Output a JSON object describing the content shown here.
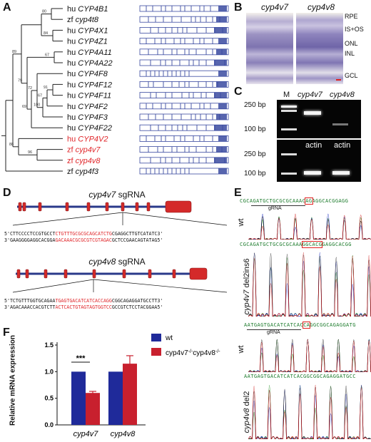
{
  "panels": {
    "A": "A",
    "B": "B",
    "C": "C",
    "D": "D",
    "E": "E",
    "F": "F"
  },
  "tree": {
    "species": [
      {
        "sp": "hu",
        "gene": "CYP4B1",
        "red": false
      },
      {
        "sp": "zf",
        "gene": "cyp4t8",
        "red": false
      },
      {
        "sp": "hu",
        "gene": "CYP4X1",
        "red": false
      },
      {
        "sp": "hu",
        "gene": "CYP4Z1",
        "red": false
      },
      {
        "sp": "hu",
        "gene": "CYP4A11",
        "red": false
      },
      {
        "sp": "hu",
        "gene": "CYP4A22",
        "red": false
      },
      {
        "sp": "hu",
        "gene": "CYP4F8",
        "red": false
      },
      {
        "sp": "hu",
        "gene": "CYP4F12",
        "red": false
      },
      {
        "sp": "hu",
        "gene": "CYP4F11",
        "red": false
      },
      {
        "sp": "hu",
        "gene": "CYP4F2",
        "red": false
      },
      {
        "sp": "hu",
        "gene": "CYP4F3",
        "red": false
      },
      {
        "sp": "hu",
        "gene": "CYP4F22",
        "red": false
      },
      {
        "sp": "hu",
        "gene": "CYP4V2",
        "red": true
      },
      {
        "sp": "zf",
        "gene": "cyp4v7",
        "red": true
      },
      {
        "sp": "zf",
        "gene": "cyp4v8",
        "red": true
      },
      {
        "sp": "zf",
        "gene": "cyp4f3",
        "red": false
      }
    ],
    "bootstrap": [
      "80",
      "84",
      "67",
      "91",
      "67",
      "100",
      "72",
      "69",
      "79",
      "89",
      "96",
      "88"
    ]
  },
  "histology": {
    "title_left": "cyp4v7",
    "title_right": "cyp4v8",
    "layers": [
      "RPE",
      "IS+OS",
      "ONL",
      "INL",
      "GCL"
    ]
  },
  "gel": {
    "marker": "M",
    "lane1": "cyp4v7",
    "lane2": "cyp4v8",
    "actin1": "actin",
    "actin2": "actin",
    "bp250": "250 bp",
    "bp100": "100 bp"
  },
  "sgrna": {
    "title_v7_gene": "cyp4v7",
    "title_v7_suffix": " sgRNA",
    "v7_top_black": "5'CTTCCCCTCCGTGCCT",
    "v7_top_red": "CTGTTTGCGCGCAGCATCTG",
    "v7_top_tail": "CGAGGCTTGTCATATC3'",
    "v7_bot_black": "3'GAAGGGGAGGCACGGA",
    "v7_bot_red": "GACAAACGCGCGTCGTAGAC",
    "v7_bot_tail": "GCTCCGAACAGTATAG5'",
    "title_v8_gene": "cyp4v8",
    "title_v8_suffix": " sgRNA",
    "v8_top_black": "5'TCTGTTTGGTGCAGAA",
    "v8_top_red": "TGAGTGACATCATCACCAGG",
    "v8_top_tail": "CGGCAGAGGATGCCTT3'",
    "v8_bot_black": "3'AGACAAACCACGTCTT",
    "v8_bot_red": "ACTCACTGTAGTAGTGGTCC",
    "v8_bot_tail": "GCCGTCTCCTACGGAA5'"
  },
  "seq": {
    "ref1_a": "CGCAGATGCTGCGCGCAAAC",
    "ref1_b": "AG",
    "ref1_c": "AGGCACGGAGG",
    "grna1": "gRNA",
    "wt1": "wt",
    "mut1_a": "CGCAGATGCTGCGCGCAAA",
    "mut1_b": "GGCACG",
    "mut1_c": "GAGGCACGG",
    "label_v7_gene": "cyp4v7",
    "label_v7_mut": " del2ins6",
    "ref2_a": "AATGAGTGACATCATCAC",
    "ref2_b": "CA",
    "ref2_c": "GGCGGCAGAGGATG",
    "grna2": "gRNA",
    "wt2": "wt",
    "mut2": "AATGAGTGACATCATCACGGCGGCAGAGGATGCC",
    "label_v8_gene": "cyp4v8",
    "label_v8_mut": " del2"
  },
  "chart_data": {
    "type": "bar",
    "categories": [
      "cyp4v7",
      "cyp4v8"
    ],
    "series": [
      {
        "name": "wt",
        "color": "#1f2a9a",
        "values": [
          1.0,
          1.0
        ],
        "errors": [
          0,
          0
        ]
      },
      {
        "name": "cyp4v7-/-cyp4v8-/-",
        "color": "#c8202e",
        "values": [
          0.6,
          1.15
        ],
        "errors": [
          0.03,
          0.15
        ]
      }
    ],
    "ylabel": "Relative mRNA expression",
    "ylim": [
      0,
      1.5
    ],
    "yticks": [
      "0.0",
      "0.5",
      "1.0",
      "1.5"
    ],
    "significance": "***",
    "legend_wt": "wt",
    "legend_mut_a": "cyp4v7",
    "legend_mut_sup1": "-/-",
    "legend_mut_b": "cyp4v8",
    "legend_mut_sup2": "-/-"
  }
}
